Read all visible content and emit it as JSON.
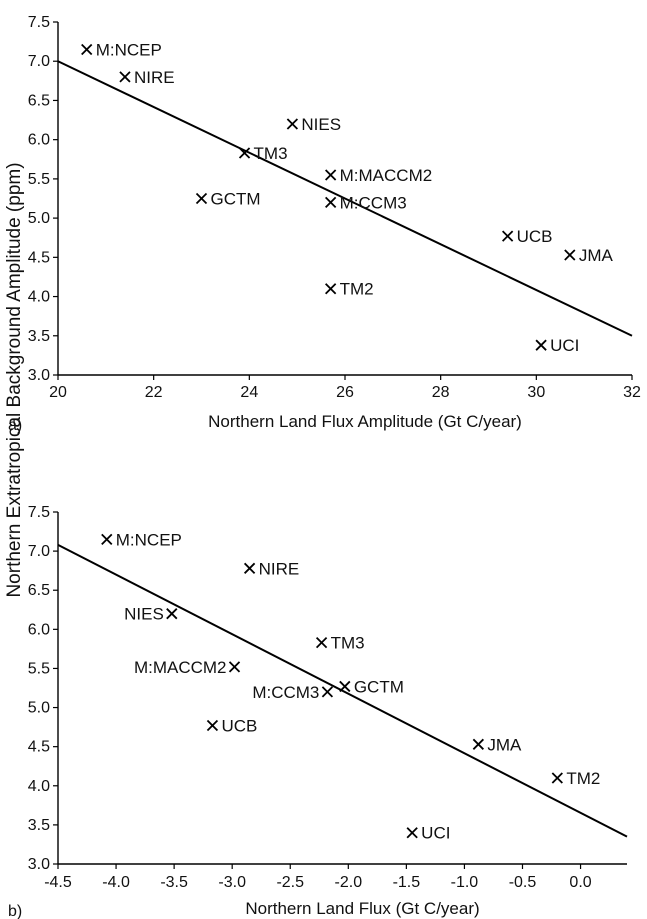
{
  "figure": {
    "ylabel": "Northern Extratropical Background Amplitude (ppm)"
  },
  "chart_data": [
    {
      "type": "scatter",
      "panel_label": "a)",
      "xlabel": "Northern Land Flux Amplitude (Gt C/year)",
      "ylabel": "Northern Extratropical Background Amplitude (ppm)",
      "xlim": [
        20,
        32
      ],
      "ylim": [
        3.0,
        7.5
      ],
      "xticks": [
        20,
        22,
        24,
        26,
        28,
        30,
        32
      ],
      "xtick_labels": [
        "20",
        "22",
        "24",
        "26",
        "28",
        "30",
        "32"
      ],
      "yticks": [
        3.0,
        3.5,
        4.0,
        4.5,
        5.0,
        5.5,
        6.0,
        6.5,
        7.0,
        7.5
      ],
      "ytick_labels": [
        "3.0",
        "3.5",
        "4.0",
        "4.5",
        "5.0",
        "5.5",
        "6.0",
        "6.5",
        "7.0",
        "7.5"
      ],
      "grid": false,
      "marker": "x",
      "points": [
        {
          "label": "M:NCEP",
          "x": 20.6,
          "y": 7.15,
          "label_side": "right"
        },
        {
          "label": "NIRE",
          "x": 21.4,
          "y": 6.8,
          "label_side": "right"
        },
        {
          "label": "NIES",
          "x": 24.9,
          "y": 6.2,
          "label_side": "right"
        },
        {
          "label": "TM3",
          "x": 23.9,
          "y": 5.83,
          "label_side": "right"
        },
        {
          "label": "M:MACCM2",
          "x": 25.7,
          "y": 5.55,
          "label_side": "right"
        },
        {
          "label": "GCTM",
          "x": 23.0,
          "y": 5.25,
          "label_side": "right"
        },
        {
          "label": "M:CCM3",
          "x": 25.7,
          "y": 5.2,
          "label_side": "right"
        },
        {
          "label": "UCB",
          "x": 29.4,
          "y": 4.77,
          "label_side": "right"
        },
        {
          "label": "JMA",
          "x": 30.7,
          "y": 4.53,
          "label_side": "right"
        },
        {
          "label": "TM2",
          "x": 25.7,
          "y": 4.1,
          "label_side": "right"
        },
        {
          "label": "UCI",
          "x": 30.1,
          "y": 3.38,
          "label_side": "right"
        }
      ],
      "fit_line": {
        "x": [
          20,
          32
        ],
        "y": [
          7.0,
          3.5
        ]
      }
    },
    {
      "type": "scatter",
      "panel_label": "b)",
      "xlabel": "Northern Land Flux (Gt C/year)",
      "ylabel": "Northern Extratropical Background Amplitude (ppm)",
      "xlim": [
        -4.5,
        0.4
      ],
      "ylim": [
        3.0,
        7.5
      ],
      "xticks": [
        -4.5,
        -4.0,
        -3.5,
        -3.0,
        -2.5,
        -2.0,
        -1.5,
        -1.0,
        -0.5,
        0.0
      ],
      "xtick_labels": [
        "-4.5",
        "-4.0",
        "-3.5",
        "-3.0",
        "-2.5",
        "-2.0",
        "-1.5",
        "-1.0",
        "-0.5",
        "0.0"
      ],
      "yticks": [
        3.0,
        3.5,
        4.0,
        4.5,
        5.0,
        5.5,
        6.0,
        6.5,
        7.0,
        7.5
      ],
      "ytick_labels": [
        "3.0",
        "3.5",
        "4.0",
        "4.5",
        "5.0",
        "5.5",
        "6.0",
        "6.5",
        "7.0",
        "7.5"
      ],
      "grid": false,
      "marker": "x",
      "points": [
        {
          "label": "M:NCEP",
          "x": -4.08,
          "y": 7.15,
          "label_side": "right"
        },
        {
          "label": "NIRE",
          "x": -2.85,
          "y": 6.78,
          "label_side": "right"
        },
        {
          "label": "NIES",
          "x": -3.52,
          "y": 6.2,
          "label_side": "left"
        },
        {
          "label": "TM3",
          "x": -2.23,
          "y": 5.83,
          "label_side": "right"
        },
        {
          "label": "M:MACCM2",
          "x": -2.98,
          "y": 5.52,
          "label_side": "left"
        },
        {
          "label": "GCTM",
          "x": -2.03,
          "y": 5.27,
          "label_side": "right"
        },
        {
          "label": "M:CCM3",
          "x": -2.18,
          "y": 5.2,
          "label_side": "left"
        },
        {
          "label": "UCB",
          "x": -3.17,
          "y": 4.77,
          "label_side": "right"
        },
        {
          "label": "JMA",
          "x": -0.88,
          "y": 4.53,
          "label_side": "right"
        },
        {
          "label": "TM2",
          "x": -0.2,
          "y": 4.1,
          "label_side": "right"
        },
        {
          "label": "UCI",
          "x": -1.45,
          "y": 3.4,
          "label_side": "right"
        }
      ],
      "fit_line": {
        "x": [
          -4.5,
          0.4
        ],
        "y": [
          7.08,
          3.35
        ]
      }
    }
  ]
}
